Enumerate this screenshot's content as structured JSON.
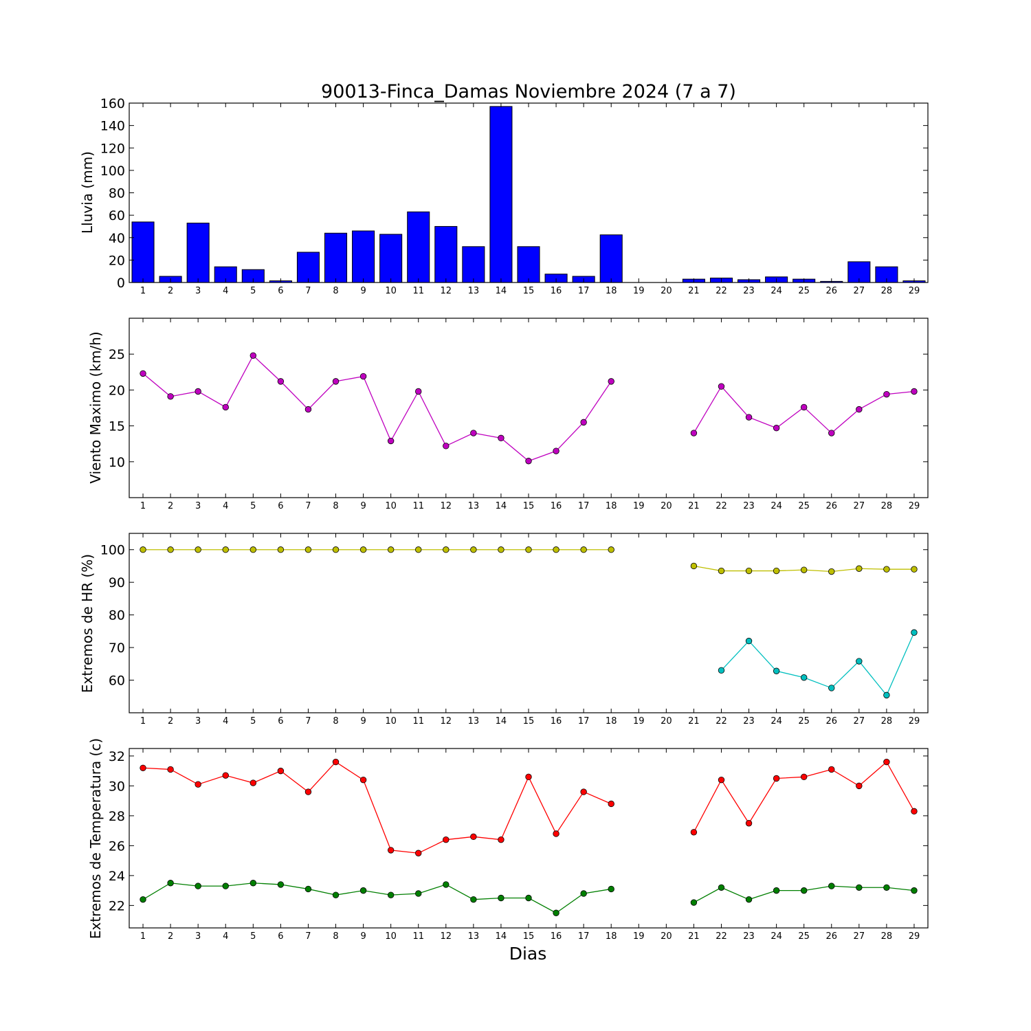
{
  "chart_data": [
    {
      "type": "bar",
      "title": "90013-Finca_Damas Noviembre 2024  (7 a 7)",
      "ylabel": "Lluvia (mm)",
      "xlabel": "",
      "ylim": [
        0,
        160
      ],
      "yticks": [
        0,
        20,
        40,
        60,
        80,
        100,
        120,
        140,
        160
      ],
      "categories": [
        "1",
        "2",
        "3",
        "4",
        "5",
        "6",
        "7",
        "8",
        "9",
        "10",
        "11",
        "12",
        "13",
        "14",
        "15",
        "16",
        "17",
        "18",
        "19",
        "20",
        "21",
        "22",
        "23",
        "24",
        "25",
        "26",
        "27",
        "28",
        "29"
      ],
      "series": [
        {
          "color": "#0000ff",
          "values": [
            54,
            5.5,
            53,
            14,
            11.5,
            1.5,
            27,
            44,
            46,
            43,
            63,
            50,
            32,
            157,
            32,
            7.5,
            5.5,
            42.5,
            null,
            null,
            3,
            4,
            2.5,
            5,
            3,
            1,
            18.5,
            14,
            1.5
          ]
        }
      ]
    },
    {
      "type": "line",
      "title": "",
      "ylabel": "Viento Maximo (km/h)",
      "xlabel": "",
      "ylim": [
        5,
        30
      ],
      "yticks": [
        10,
        15,
        20,
        25
      ],
      "categories": [
        "1",
        "2",
        "3",
        "4",
        "5",
        "6",
        "7",
        "8",
        "9",
        "10",
        "11",
        "12",
        "13",
        "14",
        "15",
        "16",
        "17",
        "18",
        "19",
        "20",
        "21",
        "22",
        "23",
        "24",
        "25",
        "26",
        "27",
        "28",
        "29"
      ],
      "series": [
        {
          "color": "#bf00bf",
          "values": [
            22.3,
            19.1,
            19.8,
            17.6,
            24.8,
            21.2,
            17.3,
            21.2,
            21.9,
            12.9,
            19.8,
            12.2,
            14.0,
            13.3,
            10.1,
            11.5,
            15.5,
            21.2,
            null,
            null,
            14.0,
            20.5,
            16.2,
            14.7,
            17.6,
            14.0,
            17.3,
            19.4,
            19.8
          ]
        }
      ]
    },
    {
      "type": "line",
      "title": "",
      "ylabel": "Extremos de HR (%)",
      "xlabel": "",
      "ylim": [
        50,
        105
      ],
      "yticks": [
        60,
        70,
        80,
        90,
        100
      ],
      "categories": [
        "1",
        "2",
        "3",
        "4",
        "5",
        "6",
        "7",
        "8",
        "9",
        "10",
        "11",
        "12",
        "13",
        "14",
        "15",
        "16",
        "17",
        "18",
        "19",
        "20",
        "21",
        "22",
        "23",
        "24",
        "25",
        "26",
        "27",
        "28",
        "29"
      ],
      "series": [
        {
          "color": "#bfbf00",
          "values": [
            100,
            100,
            100,
            100,
            100,
            100,
            100,
            100,
            100,
            100,
            100,
            100,
            100,
            100,
            100,
            100,
            100,
            100,
            null,
            null,
            95,
            93.5,
            93.5,
            93.5,
            93.8,
            93.3,
            94.2,
            94,
            94
          ]
        },
        {
          "color": "#00bfbf",
          "values": [
            null,
            null,
            null,
            null,
            null,
            null,
            null,
            null,
            null,
            null,
            null,
            null,
            null,
            null,
            null,
            null,
            null,
            null,
            null,
            null,
            null,
            63,
            72,
            62.8,
            60.8,
            57.6,
            65.8,
            55.4,
            74.6
          ]
        }
      ]
    },
    {
      "type": "line",
      "title": "",
      "ylabel": "Extremos de Temperatura (c)",
      "xlabel": "Dias",
      "ylim": [
        20.5,
        32.5
      ],
      "yticks": [
        22,
        24,
        26,
        28,
        30,
        32
      ],
      "categories": [
        "1",
        "2",
        "3",
        "4",
        "5",
        "6",
        "7",
        "8",
        "9",
        "10",
        "11",
        "12",
        "13",
        "14",
        "15",
        "16",
        "17",
        "18",
        "19",
        "20",
        "21",
        "22",
        "23",
        "24",
        "25",
        "26",
        "27",
        "28",
        "29"
      ],
      "series": [
        {
          "color": "#ff0000",
          "values": [
            31.2,
            31.1,
            30.1,
            30.7,
            30.2,
            31.0,
            29.6,
            31.6,
            30.4,
            25.7,
            25.5,
            26.4,
            26.6,
            26.4,
            30.6,
            26.8,
            29.6,
            28.8,
            null,
            null,
            26.9,
            30.4,
            27.5,
            30.5,
            30.6,
            31.1,
            30.0,
            31.6,
            28.3
          ]
        },
        {
          "color": "#007f00",
          "values": [
            22.4,
            23.5,
            23.3,
            23.3,
            23.5,
            23.4,
            23.1,
            22.7,
            23.0,
            22.7,
            22.8,
            23.4,
            22.4,
            22.5,
            22.5,
            21.5,
            22.8,
            23.1,
            null,
            null,
            22.2,
            23.2,
            22.4,
            23.0,
            23.0,
            23.3,
            23.2,
            23.2,
            23.0
          ]
        }
      ]
    }
  ]
}
